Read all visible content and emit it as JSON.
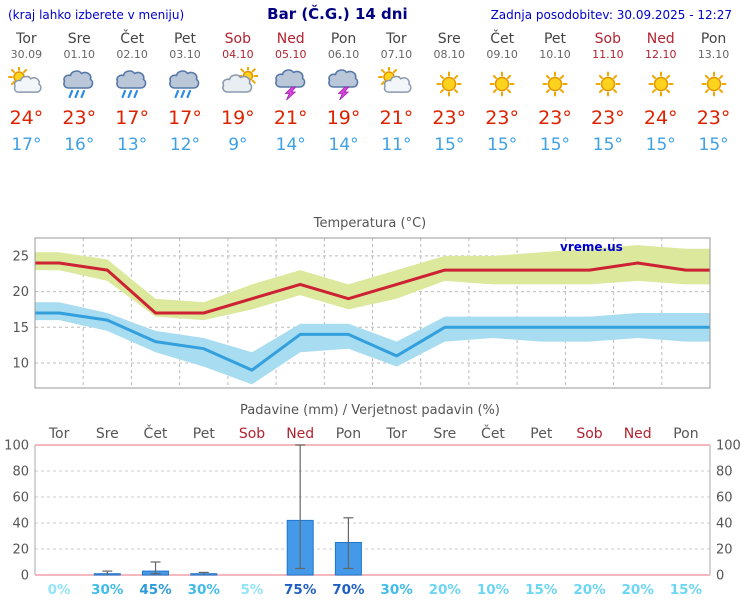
{
  "header": {
    "hint": "(kraj lahko izberete v meniju)",
    "title": "Bar (Č.G.) 14 dni",
    "updated": "Zadnja posodobitev: 30.09.2025 - 12:27"
  },
  "watermark": "vreme.us",
  "colors": {
    "link_blue": "#0000cc",
    "title_navy": "#000080",
    "weekday_text": "#444444",
    "date_text": "#666666",
    "weekend_text": "#b22230",
    "tmax_red": "#dd2200",
    "tmin_blue": "#3fa0e4",
    "line_max": "#cc2233",
    "line_min": "#33a0dd",
    "band_max": "#dce89c",
    "band_min": "#a8dcf0",
    "bar_fill": "#4499e8",
    "bar_stroke": "#2277cc",
    "axis_text": "#555555",
    "grid_line": "#bbbbbb",
    "pink_axis": "#f0a0a8",
    "whisker": "#666666"
  },
  "days": [
    {
      "name": "Tor",
      "date": "30.09",
      "icon": "sun-cloud",
      "tmax": "24°",
      "tmin": "17°",
      "weekend": false
    },
    {
      "name": "Sre",
      "date": "01.10",
      "icon": "rain",
      "tmax": "23°",
      "tmin": "16°",
      "weekend": false
    },
    {
      "name": "Čet",
      "date": "02.10",
      "icon": "rain",
      "tmax": "17°",
      "tmin": "13°",
      "weekend": false
    },
    {
      "name": "Pet",
      "date": "03.10",
      "icon": "rain",
      "tmax": "17°",
      "tmin": "12°",
      "weekend": false
    },
    {
      "name": "Sob",
      "date": "04.10",
      "icon": "cloud-sun",
      "tmax": "19°",
      "tmin": "9°",
      "weekend": true
    },
    {
      "name": "Ned",
      "date": "05.10",
      "icon": "storm",
      "tmax": "21°",
      "tmin": "14°",
      "weekend": true
    },
    {
      "name": "Pon",
      "date": "06.10",
      "icon": "storm",
      "tmax": "19°",
      "tmin": "14°",
      "weekend": false
    },
    {
      "name": "Tor",
      "date": "07.10",
      "icon": "sun-cloud",
      "tmax": "21°",
      "tmin": "11°",
      "weekend": false
    },
    {
      "name": "Sre",
      "date": "08.10",
      "icon": "sunny",
      "tmax": "23°",
      "tmin": "15°",
      "weekend": false
    },
    {
      "name": "Čet",
      "date": "09.10",
      "icon": "sunny",
      "tmax": "23°",
      "tmin": "15°",
      "weekend": false
    },
    {
      "name": "Pet",
      "date": "10.10",
      "icon": "sunny",
      "tmax": "23°",
      "tmin": "15°",
      "weekend": false
    },
    {
      "name": "Sob",
      "date": "11.10",
      "icon": "sunny",
      "tmax": "23°",
      "tmin": "15°",
      "weekend": true
    },
    {
      "name": "Ned",
      "date": "12.10",
      "icon": "sunny",
      "tmax": "24°",
      "tmin": "15°",
      "weekend": true
    },
    {
      "name": "Pon",
      "date": "13.10",
      "icon": "sunny",
      "tmax": "23°",
      "tmin": "15°",
      "weekend": false
    }
  ],
  "chart_data": [
    {
      "type": "line",
      "title": "Temperatura (°C)",
      "categories": [
        "Tor",
        "Sre",
        "Čet",
        "Pet",
        "Sob",
        "Ned",
        "Pon",
        "Tor",
        "Sre",
        "Čet",
        "Pet",
        "Sob",
        "Ned",
        "Pon"
      ],
      "ylim": [
        6.5,
        27.5
      ],
      "yticks": [
        10,
        15,
        20,
        25
      ],
      "grid": true,
      "series": [
        {
          "name": "Tmax",
          "values": [
            24,
            23,
            17,
            17,
            19,
            21,
            19,
            21,
            23,
            23,
            23,
            23,
            24,
            23
          ]
        },
        {
          "name": "Tmin",
          "values": [
            17,
            16,
            13,
            12,
            9,
            14,
            14,
            11,
            15,
            15,
            15,
            15,
            15,
            15
          ]
        }
      ],
      "bands": [
        {
          "name": "Tmax-range",
          "upper": [
            25.5,
            24.5,
            19,
            18.5,
            21,
            23,
            21,
            23,
            25,
            25,
            25.5,
            26,
            26.5,
            26
          ],
          "lower": [
            23,
            21.5,
            16.5,
            16,
            17.5,
            19.5,
            17.5,
            19,
            21.5,
            21,
            21,
            21,
            21.5,
            21
          ]
        },
        {
          "name": "Tmin-range",
          "upper": [
            18.5,
            17,
            14.5,
            13.5,
            11.5,
            15.5,
            15.5,
            13,
            16.5,
            16.5,
            16.5,
            16.5,
            17,
            17
          ],
          "lower": [
            16,
            14.5,
            11.5,
            9.5,
            7,
            11.5,
            12,
            9.5,
            13,
            13.5,
            13,
            13,
            13.5,
            13
          ]
        }
      ]
    },
    {
      "type": "bar",
      "title": "Padavine (mm) / Verjetnost padavin (%)",
      "categories": [
        "Tor",
        "Sre",
        "Čet",
        "Pet",
        "Sob",
        "Ned",
        "Pon",
        "Tor",
        "Sre",
        "Čet",
        "Pet",
        "Sob",
        "Ned",
        "Pon"
      ],
      "weekend": [
        false,
        false,
        false,
        false,
        true,
        true,
        false,
        false,
        false,
        false,
        false,
        true,
        true,
        false
      ],
      "values": [
        0,
        1,
        3,
        1,
        0,
        42,
        25,
        0,
        0,
        0,
        0,
        0,
        0,
        0
      ],
      "whisker_min": [
        0,
        0,
        1,
        0,
        0,
        5,
        5,
        0,
        0,
        0,
        0,
        0,
        0,
        0
      ],
      "whisker_max": [
        0,
        3,
        10,
        2,
        0,
        100,
        44,
        0,
        0,
        0,
        0,
        0,
        0,
        0
      ],
      "probabilities": [
        "0%",
        "30%",
        "45%",
        "30%",
        "5%",
        "75%",
        "70%",
        "30%",
        "20%",
        "10%",
        "15%",
        "20%",
        "20%",
        "15%"
      ],
      "ylim": [
        0,
        100
      ],
      "yticks": [
        0,
        20,
        40,
        60,
        80,
        100
      ]
    }
  ]
}
